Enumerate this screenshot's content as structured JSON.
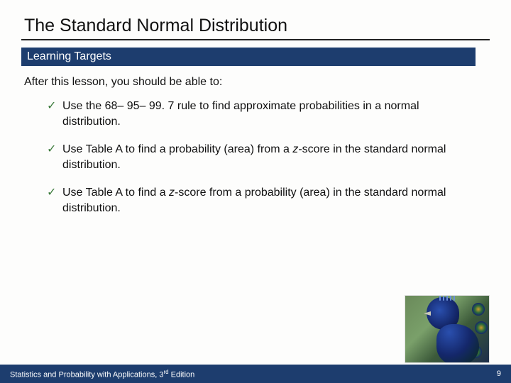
{
  "title": "The Standard Normal Distribution",
  "section_label": "Learning Targets",
  "intro": "After this lesson, you should be able to:",
  "bullets": [
    {
      "pre": "Use the 68– 95– 99. 7 rule to find approximate probabilities in a normal distribution."
    },
    {
      "pre": "Use Table A to find a probability (area) from a ",
      "it": "z",
      "post": "-score in the standard normal distribution."
    },
    {
      "pre": "Use Table A to find a ",
      "it": "z",
      "post": "-score from a probability (area) in the standard normal distribution."
    }
  ],
  "footer": {
    "book": "Statistics and Probability with Applications, 3",
    "ed_sup": "rd",
    "ed_tail": " Edition",
    "page": "9"
  },
  "colors": {
    "bar_bg": "#1d3d6e",
    "check": "#3a7a3a",
    "text": "#111111",
    "slide_bg": "#fdfdfc"
  },
  "image": {
    "name": "peacock-photo",
    "alt": "Peacock"
  }
}
